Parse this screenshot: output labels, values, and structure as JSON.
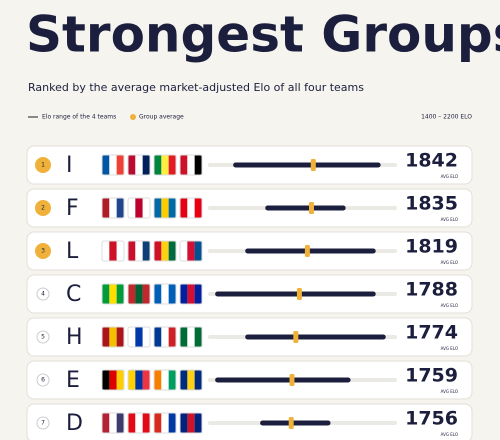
{
  "chart_data": {
    "type": "range",
    "title": "Strongest Groups",
    "subtitle": "Ranked by the average market-adjusted Elo of all four teams",
    "legend_range": "Elo range of the 4 teams",
    "legend_average": "Group average",
    "scale_label": "1400 – 2200 ELO",
    "value_sublabel": "AVG ELO",
    "ranks": [
      1,
      2,
      3,
      4,
      5,
      6,
      7
    ],
    "categories": [
      "I",
      "F",
      "L",
      "C",
      "H",
      "E",
      "D"
    ],
    "values": [
      1842,
      1835,
      1819,
      1788,
      1774,
      1759,
      1756
    ],
    "min": [
      1530,
      1655,
      1577,
      1460,
      1577,
      1460,
      1635
    ],
    "max": [
      2104,
      1968,
      2085,
      2085,
      2124,
      1987,
      1909
    ],
    "xlim": [
      1440,
      2160
    ],
    "range_color": "#1b1e3c",
    "average_color": "#f0b13a"
  }
}
